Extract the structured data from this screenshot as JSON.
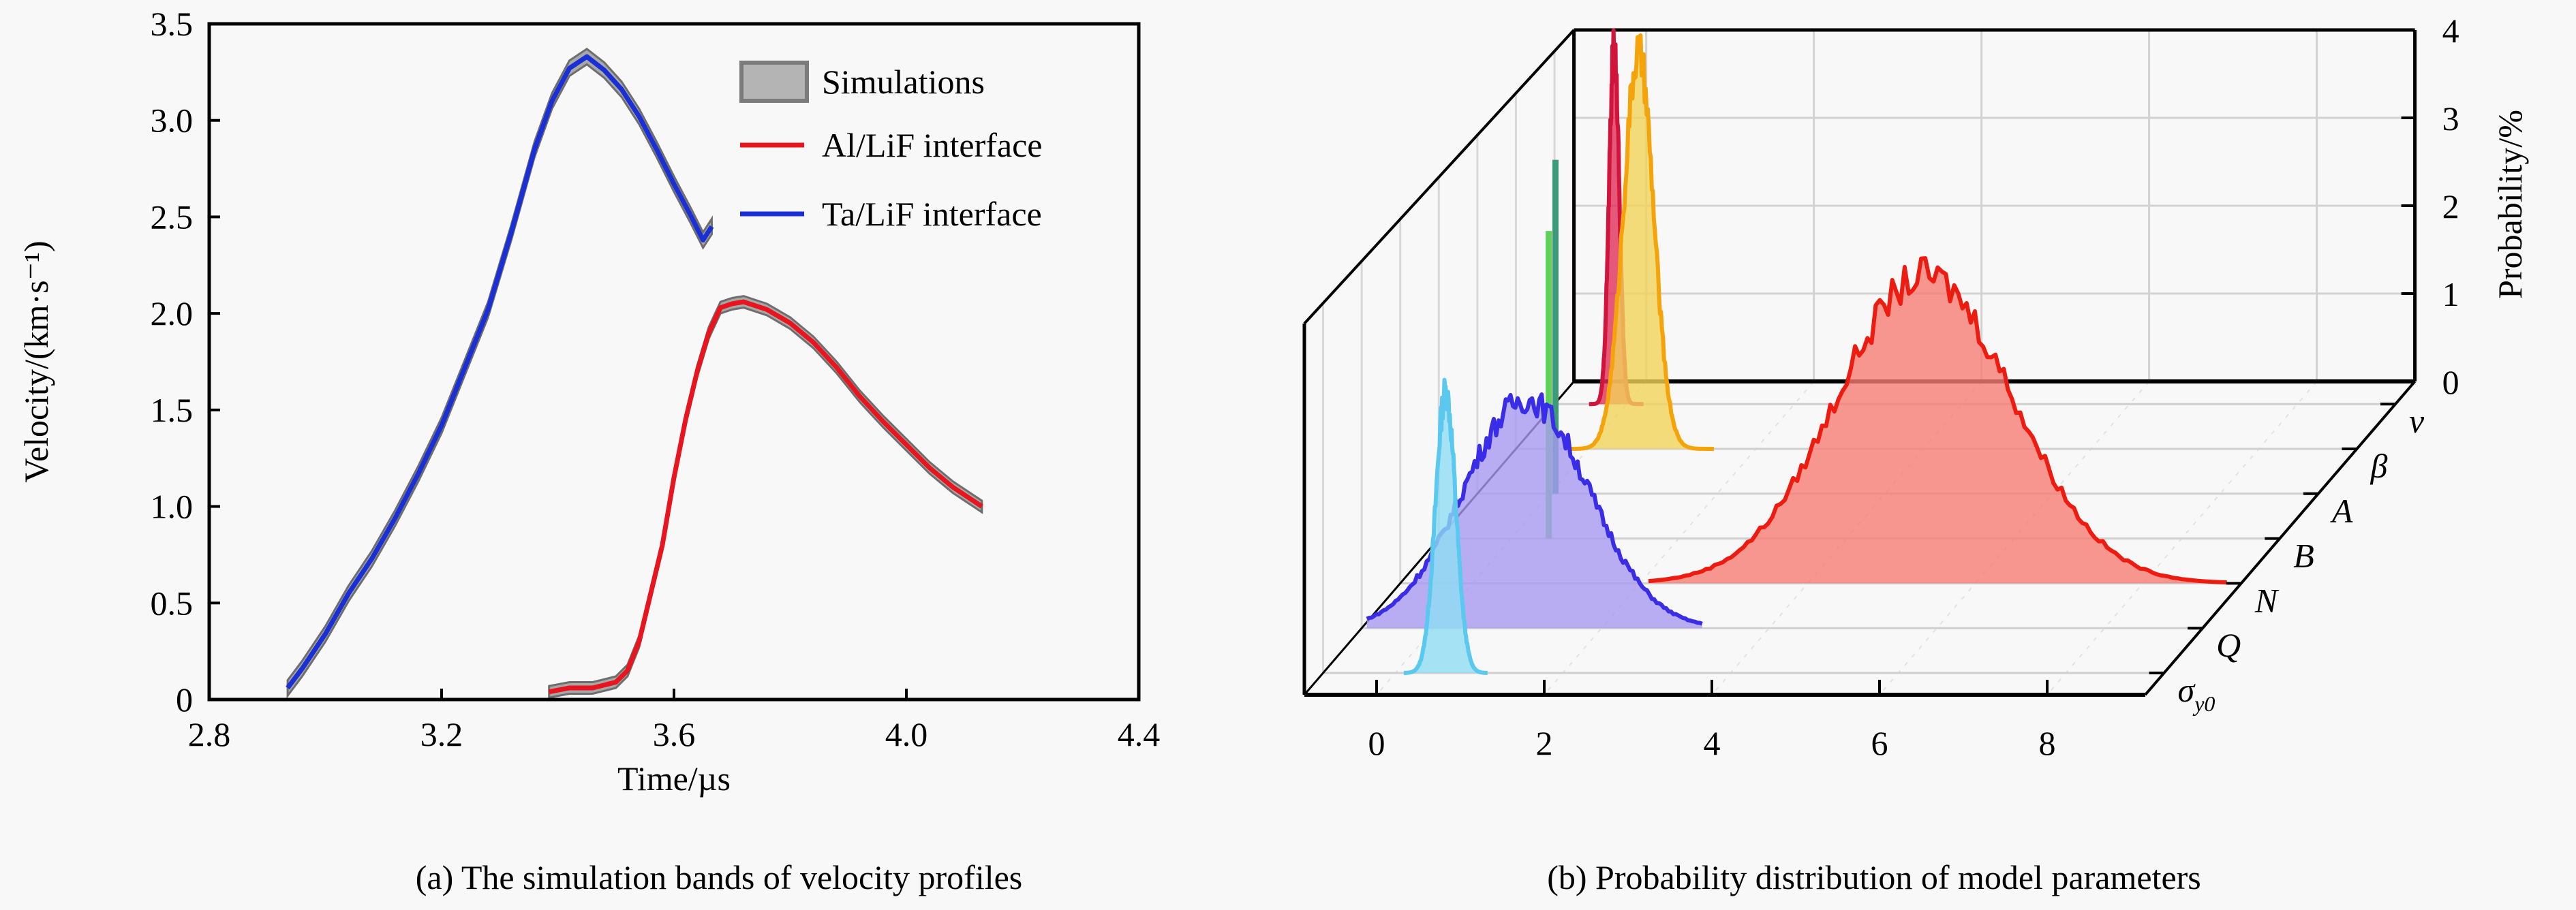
{
  "figure": {
    "panel_a_caption": "(a) The simulation bands of velocity profiles",
    "panel_b_caption": "(b) Probability distribution of model parameters"
  },
  "chart_data": [
    {
      "type": "line",
      "title": "",
      "xlabel": "Time/µs",
      "ylabel": "Velocity/(km·s⁻¹)",
      "xlim": [
        2.8,
        4.4
      ],
      "ylim": [
        0,
        3.5
      ],
      "xticks": [
        2.8,
        3.2,
        3.6,
        4.0,
        4.4
      ],
      "xtick_labels": [
        "2.8",
        "3.2",
        "3.6",
        "4.0",
        "4.4"
      ],
      "yticks": [
        0,
        0.5,
        1.0,
        1.5,
        2.0,
        2.5,
        3.0,
        3.5
      ],
      "ytick_labels": [
        "0",
        "0.5",
        "1.0",
        "1.5",
        "2.0",
        "2.5",
        "3.0",
        "3.5"
      ],
      "grid": false,
      "legend_position": "top-right",
      "legend": [
        {
          "label": "Simulations",
          "kind": "band",
          "color": "#a8a8a8",
          "edge": "#7a7a7a"
        },
        {
          "label": "Al/LiF interface",
          "kind": "line",
          "color": "#e8141e"
        },
        {
          "label": "Ta/LiF interface",
          "kind": "line",
          "color": "#1a2fd6"
        }
      ],
      "series": [
        {
          "name": "Ta/LiF interface",
          "color": "#1a2fd6",
          "band_halfwidth": 0.04,
          "x": [
            2.935,
            2.96,
            3.0,
            3.04,
            3.08,
            3.12,
            3.16,
            3.2,
            3.24,
            3.28,
            3.32,
            3.36,
            3.39,
            3.42,
            3.45,
            3.48,
            3.51,
            3.54,
            3.57,
            3.6,
            3.63,
            3.65,
            3.665
          ],
          "y": [
            0.06,
            0.16,
            0.34,
            0.55,
            0.73,
            0.94,
            1.17,
            1.42,
            1.72,
            2.02,
            2.42,
            2.85,
            3.1,
            3.27,
            3.33,
            3.26,
            3.16,
            3.02,
            2.85,
            2.67,
            2.5,
            2.38,
            2.45
          ]
        },
        {
          "name": "Al/LiF interface",
          "color": "#e8141e",
          "band_halfwidth": 0.03,
          "x": [
            3.385,
            3.42,
            3.46,
            3.5,
            3.52,
            3.54,
            3.56,
            3.58,
            3.6,
            3.62,
            3.64,
            3.66,
            3.68,
            3.7,
            3.72,
            3.76,
            3.8,
            3.84,
            3.88,
            3.92,
            3.96,
            4.0,
            4.04,
            4.08,
            4.13
          ],
          "y": [
            0.04,
            0.06,
            0.06,
            0.09,
            0.15,
            0.3,
            0.55,
            0.8,
            1.15,
            1.45,
            1.7,
            1.9,
            2.03,
            2.05,
            2.06,
            2.02,
            1.95,
            1.85,
            1.72,
            1.57,
            1.44,
            1.32,
            1.2,
            1.1,
            1.0
          ]
        }
      ]
    },
    {
      "type": "area",
      "subtype": "3d-waterfall",
      "title": "",
      "xlabel": "",
      "zlabel": "Probability/%",
      "xlim": [
        -0.85,
        9.2
      ],
      "zlim": [
        0,
        4
      ],
      "xticks": [
        0,
        2,
        4,
        6,
        8
      ],
      "xtick_labels": [
        "0",
        "2",
        "4",
        "6",
        "8"
      ],
      "zticks": [
        0,
        1,
        2,
        3,
        4
      ],
      "ztick_labels": [
        "0",
        "1",
        "2",
        "3",
        "4"
      ],
      "grid": true,
      "categories": [
        "σy0",
        "Q",
        "N",
        "B",
        "A",
        "β",
        "v"
      ],
      "category_labels": [
        {
          "main": "σ",
          "sub": "y0"
        },
        {
          "main": "Q",
          "sub": ""
        },
        {
          "main": "N",
          "sub": ""
        },
        {
          "main": "B",
          "sub": ""
        },
        {
          "main": "A",
          "sub": ""
        },
        {
          "main": "β",
          "sub": ""
        },
        {
          "main": "v",
          "sub": ""
        }
      ],
      "series": [
        {
          "name": "σy0",
          "color": "#5bc8ef",
          "fill": "#8fdcf2",
          "mean": 0.6,
          "std": 0.12,
          "peak": 3.2,
          "range": [
            0.1,
            1.1
          ],
          "kind": "dist"
        },
        {
          "name": "Q",
          "color": "#3a2de8",
          "fill": "#a89af0",
          "mean": 1.1,
          "std": 0.75,
          "peak": 2.6,
          "range": [
            -0.8,
            3.2
          ],
          "kind": "dist"
        },
        {
          "name": "N",
          "color": "#ee1c10",
          "fill": "#f57d74",
          "mean": 5.4,
          "std": 1.05,
          "peak": 3.5,
          "range": [
            2.1,
            9.0
          ],
          "kind": "dist"
        },
        {
          "name": "B",
          "color": "#5fd05a",
          "fill": "#5fd05a",
          "mean": 0.45,
          "std": 0.0,
          "peak": 3.5,
          "range": [
            0.45,
            0.45
          ],
          "kind": "spike"
        },
        {
          "name": "A",
          "color": "#3a9a7a",
          "fill": "#3a9a7a",
          "mean": 0.07,
          "std": 0.0,
          "peak": 3.8,
          "range": [
            0.07,
            0.07
          ],
          "kind": "spike"
        },
        {
          "name": "β",
          "color": "#f5a30a",
          "fill": "#f2d35a",
          "mean": 0.6,
          "std": 0.18,
          "peak": 4.5,
          "range": [
            -0.2,
            1.5
          ],
          "kind": "dist"
        },
        {
          "name": "v",
          "color": "#d0143c",
          "fill": "#e0305a",
          "mean": -0.15,
          "std": 0.06,
          "peak": 4.1,
          "range": [
            -0.45,
            0.2
          ],
          "kind": "dist"
        }
      ]
    }
  ]
}
